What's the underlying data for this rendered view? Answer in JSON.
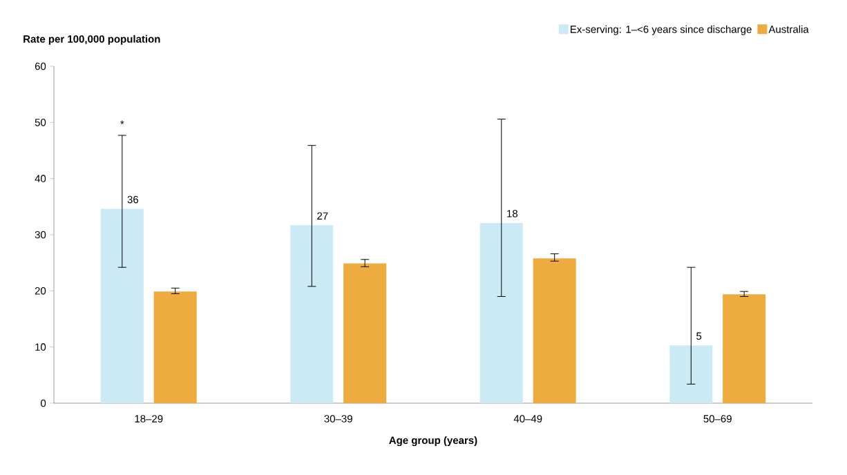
{
  "chart_data": {
    "type": "bar",
    "ylabel": "Rate per 100,000 population",
    "xlabel": "Age group (years)",
    "categories": [
      "18–29",
      "30–39",
      "40–49",
      "50–69"
    ],
    "series": [
      {
        "name": "Ex-serving:  1–<6 years since discharge",
        "color": "#cce9f6",
        "values": [
          34.6,
          31.7,
          32.1,
          10.3
        ],
        "errors": [
          [
            24.2,
            47.7
          ],
          [
            20.8,
            45.9
          ],
          [
            19.0,
            50.6
          ],
          [
            3.4,
            24.2
          ]
        ]
      },
      {
        "name": "Australia",
        "color": "#eeab40",
        "values": [
          19.9,
          24.9,
          25.8,
          19.4
        ],
        "errors": [
          [
            19.5,
            20.5
          ],
          [
            24.3,
            25.6
          ],
          [
            25.3,
            26.6
          ],
          [
            19.0,
            19.9
          ]
        ]
      }
    ],
    "ylim": [
      0,
      60
    ],
    "yticks": [
      0,
      10,
      20,
      30,
      40,
      50,
      60
    ],
    "legend": "top right",
    "annotations": [
      "*",
      "36",
      "27",
      "18",
      "5"
    ]
  }
}
